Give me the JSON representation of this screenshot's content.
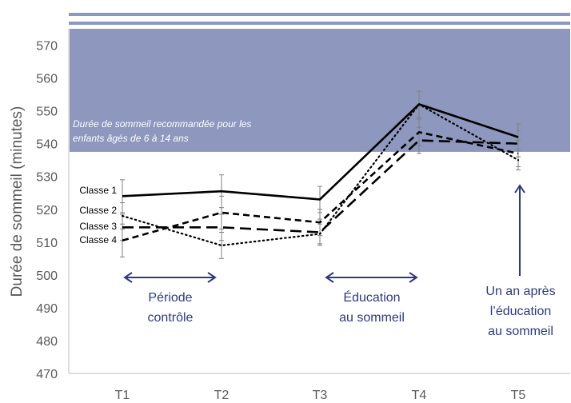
{
  "chart_data": {
    "type": "line",
    "ylabel": "Durée de sommeil (minutes)",
    "xlabel": "",
    "ylim": [
      470,
      575
    ],
    "yticks": [
      470,
      480,
      490,
      500,
      510,
      520,
      530,
      540,
      550,
      560,
      570
    ],
    "categories": [
      "T1",
      "T2",
      "T3",
      "T4",
      "T5"
    ],
    "series": [
      {
        "name": "Classe 1",
        "dash": "solid",
        "values": [
          524,
          525.5,
          523,
          552,
          542
        ],
        "err": [
          5,
          5,
          4,
          4,
          4
        ]
      },
      {
        "name": "Classe 2",
        "dash": "dotted",
        "values": [
          518,
          509,
          512.5,
          552,
          535
        ],
        "err": [
          4,
          4,
          3,
          4,
          3
        ]
      },
      {
        "name": "Classe 3",
        "dash": "dashed-long",
        "values": [
          514.5,
          514.5,
          513,
          541,
          540
        ],
        "err": [
          4,
          4,
          4,
          4,
          4
        ]
      },
      {
        "name": "Classe 4",
        "dash": "dashed",
        "values": [
          510.5,
          519,
          516,
          543.5,
          537
        ],
        "err": [
          5,
          5,
          4,
          4,
          4
        ]
      }
    ],
    "recommended_band": {
      "from": 537.5,
      "to": 575,
      "label_line1": "Durée de sommeil recommandée pour les",
      "label_line2": "enfants âgés de 6 à 14 ans",
      "color": "#8e97bd"
    },
    "annotations": {
      "controle": [
        "Période",
        "contrôle"
      ],
      "education": [
        "Éducation",
        "au sommeil"
      ],
      "apres": [
        "Un an après",
        "l’éducation",
        "au sommeil"
      ]
    },
    "colors": {
      "arrow": "#2e3a80",
      "axis_text": "#595959",
      "band": "#8e97bd",
      "header_lines": "#8e97bd",
      "series": "#000000"
    }
  }
}
